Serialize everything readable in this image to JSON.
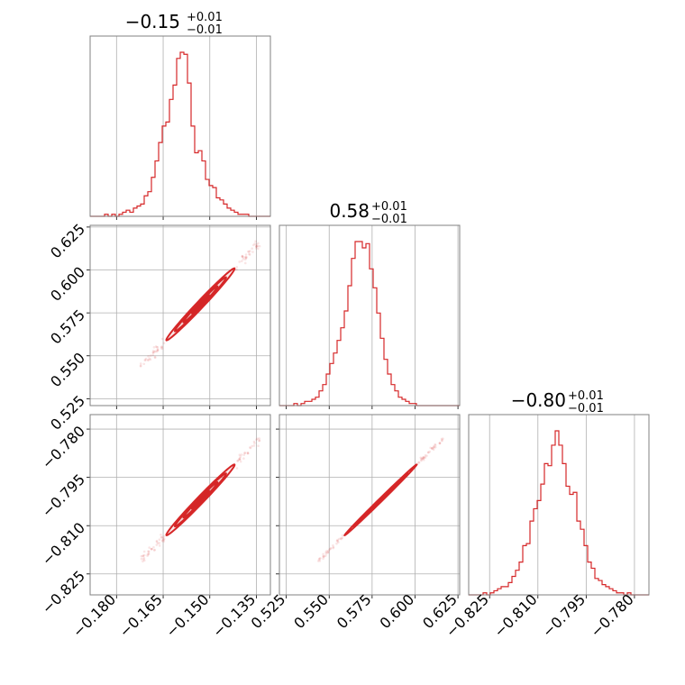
{
  "chart_data": {
    "type": "corner",
    "color": "#d62728",
    "grid": true,
    "titles": [
      {
        "main": "−0.15",
        "sup": "+0.01",
        "sub": "−0.01"
      },
      {
        "main": "0.58",
        "sup": "+0.01",
        "sub": "−0.01"
      },
      {
        "main": "−0.80",
        "sup": "+0.01",
        "sub": "−0.01"
      }
    ],
    "params": [
      {
        "range": [
          -0.1885,
          -0.1305
        ],
        "ticks": [
          -0.18,
          -0.165,
          -0.15,
          -0.135
        ],
        "tick_labels": [
          "−0.180",
          "−0.165",
          "−0.150",
          "−0.135"
        ],
        "median": -0.153,
        "sigma": 0.0055
      },
      {
        "range": [
          0.521,
          0.626
        ],
        "ticks": [
          0.525,
          0.55,
          0.575,
          0.6,
          0.625
        ],
        "tick_labels": [
          "0.525",
          "0.550",
          "0.575",
          "0.600",
          "0.625"
        ],
        "median": 0.58,
        "sigma": 0.0105
      },
      {
        "range": [
          -0.8315,
          -0.7755
        ],
        "ticks": [
          -0.825,
          -0.81,
          -0.795,
          -0.78
        ],
        "tick_labels": [
          "−0.825",
          "−0.810",
          "−0.795",
          "−0.780"
        ],
        "median": -0.802,
        "sigma": 0.0055
      }
    ],
    "hist": [
      {
        "x0": -0.1885,
        "x1": -0.1305,
        "counts": [
          0,
          0,
          0,
          0,
          1,
          0,
          1,
          0,
          1,
          2,
          3,
          2,
          4,
          5,
          6,
          10,
          12,
          19,
          27,
          36,
          44,
          46,
          57,
          64,
          77,
          80,
          79,
          65,
          44,
          31,
          32,
          27,
          18,
          15,
          14,
          9,
          8,
          6,
          4,
          3,
          2,
          1,
          1,
          1,
          0,
          0,
          0,
          0,
          0,
          0
        ]
      },
      {
        "x0": 0.521,
        "x1": 0.626,
        "counts": [
          0,
          0,
          0,
          0,
          1,
          0,
          1,
          2,
          2,
          3,
          4,
          7,
          10,
          15,
          20,
          25,
          31,
          37,
          45,
          57,
          70,
          78,
          78,
          75,
          77,
          65,
          56,
          44,
          32,
          22,
          15,
          10,
          7,
          4,
          3,
          2,
          1,
          1,
          0,
          0,
          0,
          0,
          0,
          0,
          0,
          0,
          0,
          0,
          0,
          0
        ]
      },
      {
        "x0": -0.8315,
        "x1": -0.7755,
        "counts": [
          0,
          0,
          0,
          0,
          1,
          0,
          1,
          2,
          3,
          4,
          4,
          6,
          9,
          12,
          16,
          24,
          25,
          36,
          42,
          46,
          54,
          64,
          63,
          73,
          80,
          73,
          64,
          53,
          49,
          50,
          36,
          32,
          24,
          16,
          13,
          8,
          7,
          5,
          4,
          3,
          2,
          1,
          1,
          0,
          1,
          0,
          0,
          0,
          0,
          0
        ]
      }
    ],
    "pairs": [
      {
        "row": 1,
        "col": 0,
        "corr": 0.99
      },
      {
        "row": 2,
        "col": 0,
        "corr": 0.99
      },
      {
        "row": 2,
        "col": 1,
        "corr": 0.998
      }
    ],
    "levels": [
      0.5,
      1.0,
      1.5,
      2.0
    ]
  }
}
